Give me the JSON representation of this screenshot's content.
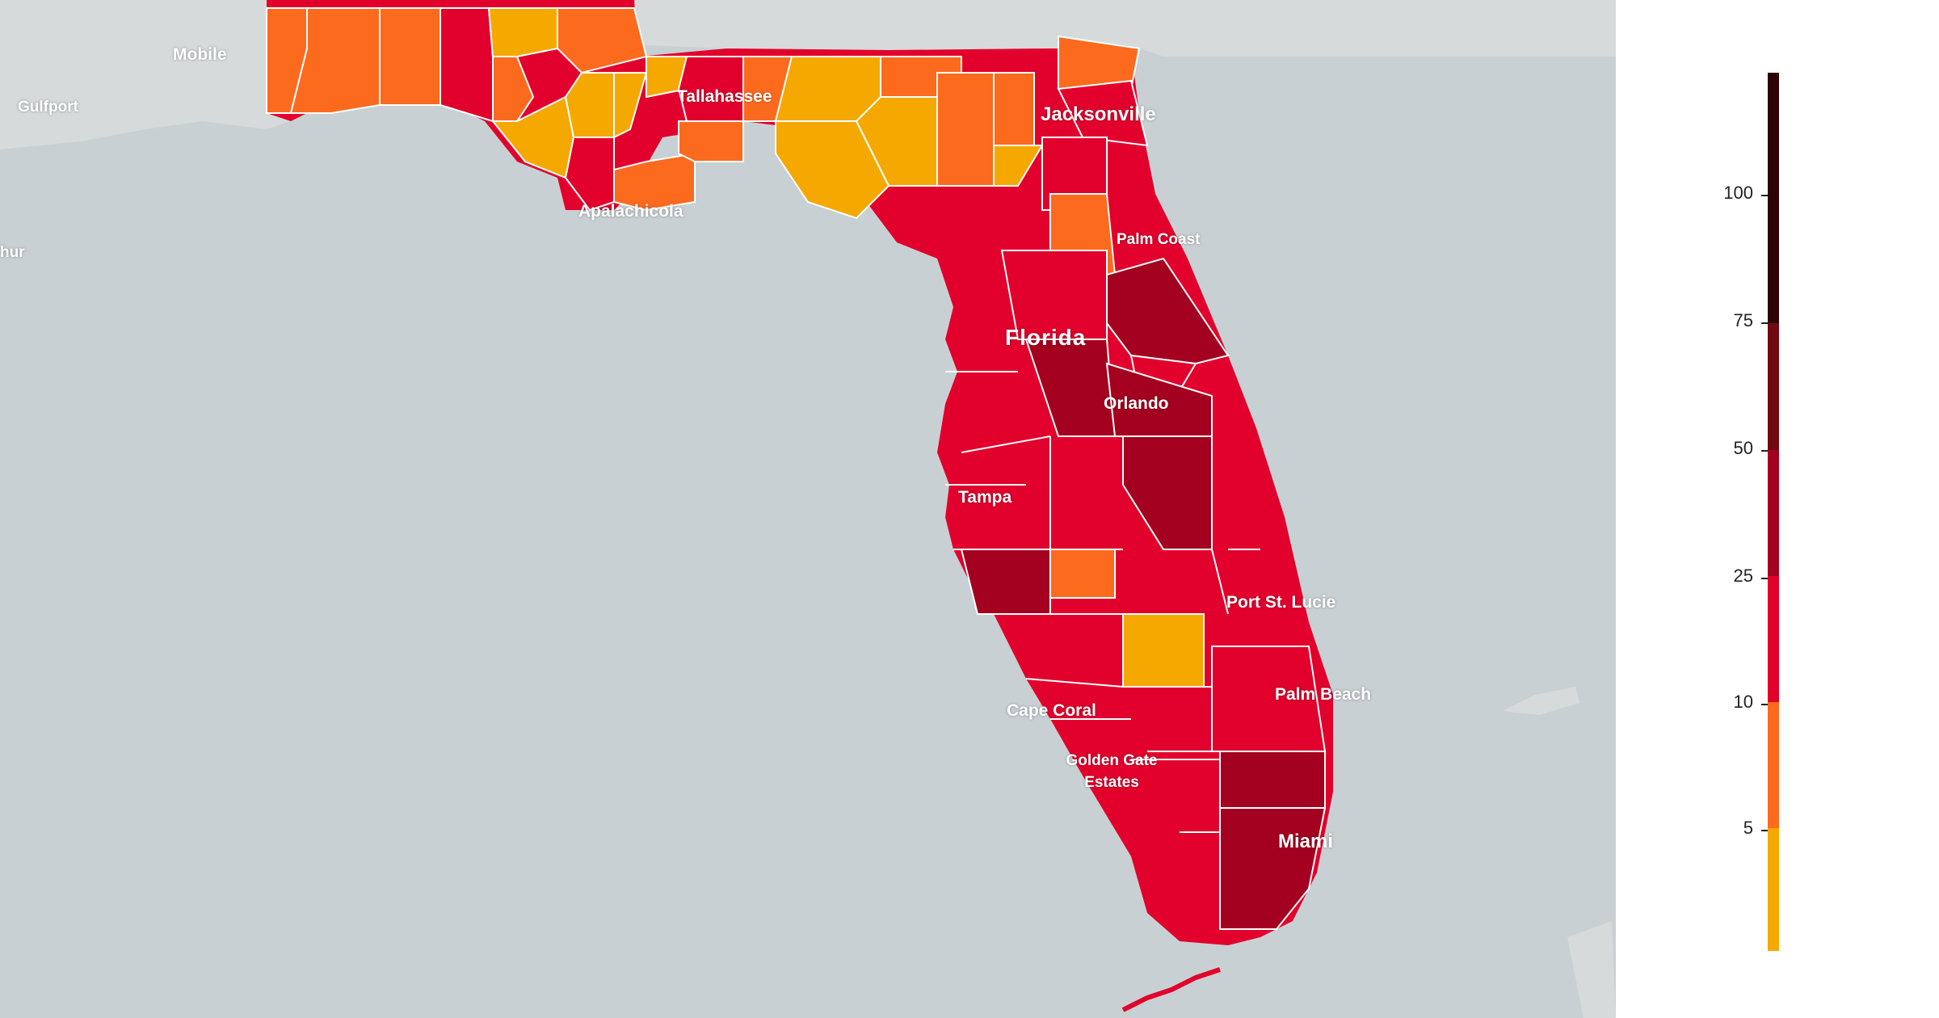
{
  "map": {
    "region_label": "Florida",
    "cities": [
      {
        "id": "mobile",
        "name": "Mobile"
      },
      {
        "id": "gulfport",
        "name": "Gulfport"
      },
      {
        "id": "arthur",
        "name": "hur"
      },
      {
        "id": "tallahassee",
        "name": "Tallahassee"
      },
      {
        "id": "jacksonville",
        "name": "Jacksonville"
      },
      {
        "id": "apalachicola",
        "name": "Apalachicola"
      },
      {
        "id": "palm-coast",
        "name": "Palm Coast"
      },
      {
        "id": "orlando",
        "name": "Orlando"
      },
      {
        "id": "tampa",
        "name": "Tampa"
      },
      {
        "id": "port-st-lucie",
        "name": "Port St. Lucie"
      },
      {
        "id": "palm-beach",
        "name": "Palm Beach"
      },
      {
        "id": "cape-coral",
        "name": "Cape Coral"
      },
      {
        "id": "golden-gate",
        "name": "Golden Gate\nEstates"
      },
      {
        "id": "miami",
        "name": "Miami"
      }
    ]
  },
  "legend": {
    "ticks": [
      "100",
      "75",
      "50",
      "25",
      "10",
      "5"
    ],
    "colors": [
      "#f5a800",
      "#fc6a1e",
      "#e2002c",
      "#a4001f",
      "#6e0a12",
      "#2e0306"
    ]
  }
}
